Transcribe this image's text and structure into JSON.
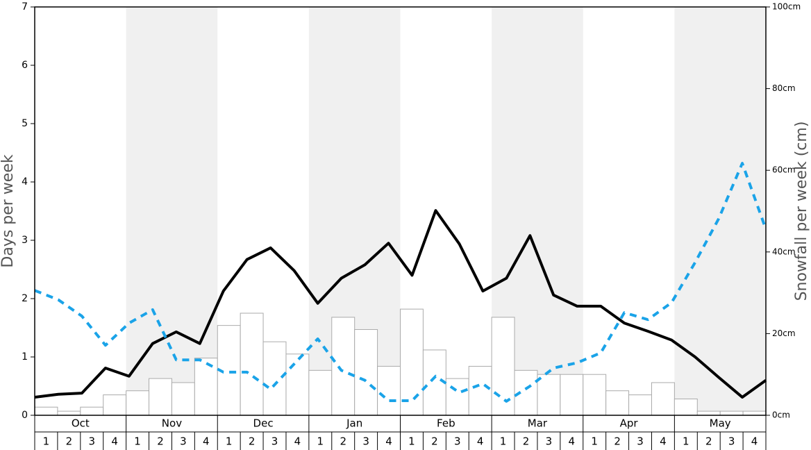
{
  "chart_data": {
    "type": "bar-line",
    "ylabel": "Days per week",
    "y2label": "Snowfall per week (cm)",
    "groups": [
      "Oct",
      "Nov",
      "Dec",
      "Jan",
      "Feb",
      "Mar",
      "Apr",
      "May"
    ],
    "categories": [
      "1",
      "2",
      "3",
      "4",
      "1",
      "2",
      "3",
      "4",
      "1",
      "2",
      "3",
      "4",
      "1",
      "2",
      "3",
      "4",
      "1",
      "2",
      "3",
      "4",
      "1",
      "2",
      "3",
      "4",
      "1",
      "2",
      "3",
      "4",
      "1",
      "2",
      "3",
      "4"
    ],
    "ylim": [
      0,
      7
    ],
    "yticks": [
      0,
      1,
      2,
      3,
      4,
      5,
      6,
      7
    ],
    "y2lim": [
      0,
      100
    ],
    "y2ticks": [
      {
        "value": 0,
        "label": "0cm"
      },
      {
        "value": 20,
        "label": "20cm"
      },
      {
        "value": 40,
        "label": "40cm"
      },
      {
        "value": 60,
        "label": "60cm"
      },
      {
        "value": 80,
        "label": "80cm"
      },
      {
        "value": 100,
        "label": "100cm"
      }
    ],
    "shade_color": "#f0f0f0",
    "series": [
      {
        "kind": "bar",
        "axis": "y2",
        "color": "#ffffff",
        "values": [
          2,
          1,
          2,
          5,
          6,
          9,
          8,
          14,
          22,
          25,
          18,
          15,
          11,
          24,
          21,
          12,
          26,
          16,
          9,
          12,
          24,
          11,
          10,
          10,
          10,
          6,
          5,
          8,
          4,
          1,
          1,
          1
        ]
      },
      {
        "kind": "line",
        "color": "#000000",
        "values": [
          0.31,
          0.36,
          0.38,
          0.81,
          0.67,
          1.23,
          1.43,
          1.23,
          2.13,
          2.67,
          2.87,
          2.48,
          1.92,
          2.35,
          2.58,
          2.95,
          2.4,
          3.51,
          2.94,
          2.13,
          2.35,
          3.08,
          2.06,
          1.87,
          1.87,
          1.58,
          1.44,
          1.29,
          1.0,
          0.65,
          0.31,
          0.6
        ]
      },
      {
        "kind": "dashed",
        "color": "#1aa3e8",
        "values": [
          2.14,
          1.98,
          1.7,
          1.2,
          1.58,
          1.81,
          0.95,
          0.95,
          0.74,
          0.74,
          0.45,
          0.88,
          1.31,
          0.77,
          0.6,
          0.25,
          0.25,
          0.67,
          0.39,
          0.54,
          0.24,
          0.5,
          0.81,
          0.9,
          1.07,
          1.76,
          1.64,
          1.93,
          2.62,
          3.37,
          4.32,
          3.19
        ]
      }
    ]
  }
}
